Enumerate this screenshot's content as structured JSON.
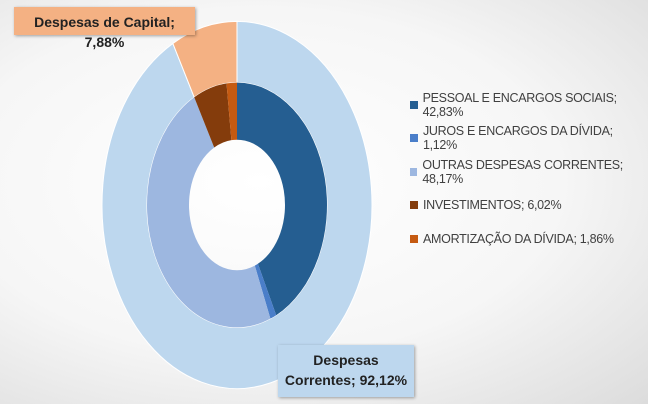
{
  "chart_data": {
    "type": "pie",
    "rings": [
      {
        "values": [
          92.12,
          7.88
        ],
        "value_labels": [
          "Despesas Correntes; 92,12%",
          "Despesas de Capital; 7,88%"
        ],
        "colors": [
          "#bdd7ee",
          "#f4b183"
        ]
      },
      {
        "values": [
          42.83,
          1.12,
          48.17,
          6.02,
          1.86
        ],
        "value_labels": [
          "PESSOAL E ENCARGOS SOCIAIS; 42,83%",
          "JUROS E ENCARGOS DA DÍVIDA; 1,12%",
          "OUTRAS DESPESAS CORRENTES; 48,17%",
          "INVESTIMENTOS; 6,02%",
          "AMORTIZAÇÃO DA DÍVIDA; 1,86%"
        ],
        "colors": [
          "#255e91",
          "#4a7ec9",
          "#9db7e0",
          "#843c0c",
          "#c55a11"
        ]
      }
    ]
  }
}
